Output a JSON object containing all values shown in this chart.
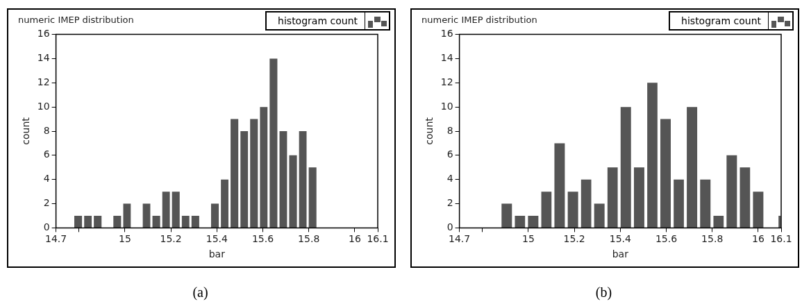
{
  "chart_data": [
    {
      "type": "histogram",
      "title": "numeric IMEP distribution",
      "xlabel": "bar",
      "ylabel": "count",
      "legend": "top right",
      "grid": false,
      "annotations": [
        "(a)"
      ],
      "bins": [
        14.775,
        14.818,
        14.86,
        14.903,
        14.945,
        14.988,
        15.03,
        15.073,
        15.115,
        15.158,
        15.2,
        15.243,
        15.285,
        15.328,
        15.37,
        15.413,
        15.455,
        15.498,
        15.54,
        15.583,
        15.625,
        15.668,
        15.71,
        15.753,
        15.795,
        15.838
      ],
      "series": [
        {
          "name": "histogram count",
          "color": "#555555",
          "values": [
            1,
            1,
            1,
            0,
            1,
            2,
            0,
            2,
            1,
            3,
            3,
            1,
            1,
            0,
            2,
            4,
            9,
            8,
            9,
            10,
            14,
            8,
            6,
            8,
            5
          ]
        }
      ],
      "xlim": [
        14.7,
        16.1
      ],
      "xticks": [
        14.7,
        {
          "value": 14.8,
          "label": null
        },
        15,
        15.2,
        15.4,
        15.6,
        15.8,
        16,
        16.1
      ],
      "ylim": [
        0,
        16
      ],
      "yticks": [
        0,
        2,
        4,
        6,
        8,
        10,
        12,
        14,
        16
      ]
    },
    {
      "type": "histogram",
      "title": "numeric IMEP distribution",
      "xlabel": "bar",
      "ylabel": "count",
      "legend": "top right",
      "grid": false,
      "annotations": [
        "(b)"
      ],
      "bins": [
        14.877,
        14.935,
        14.992,
        15.05,
        15.107,
        15.165,
        15.223,
        15.28,
        15.338,
        15.395,
        15.453,
        15.511,
        15.568,
        15.626,
        15.683,
        15.741,
        15.799,
        15.856,
        15.914,
        15.971,
        16.029,
        16.087,
        16.1
      ],
      "series": [
        {
          "name": "histogram count",
          "color": "#555555",
          "values": [
            2,
            1,
            1,
            3,
            7,
            3,
            4,
            2,
            5,
            10,
            5,
            12,
            9,
            4,
            10,
            4,
            1,
            6,
            5,
            3,
            0,
            1
          ]
        }
      ],
      "xlim": [
        14.7,
        16.1
      ],
      "xticks": [
        14.7,
        {
          "value": 14.8,
          "label": null
        },
        15,
        15.2,
        15.4,
        15.6,
        15.8,
        16,
        16.1
      ],
      "ylim": [
        0,
        16
      ],
      "yticks": [
        0,
        2,
        4,
        6,
        8,
        10,
        12,
        14,
        16
      ]
    }
  ]
}
